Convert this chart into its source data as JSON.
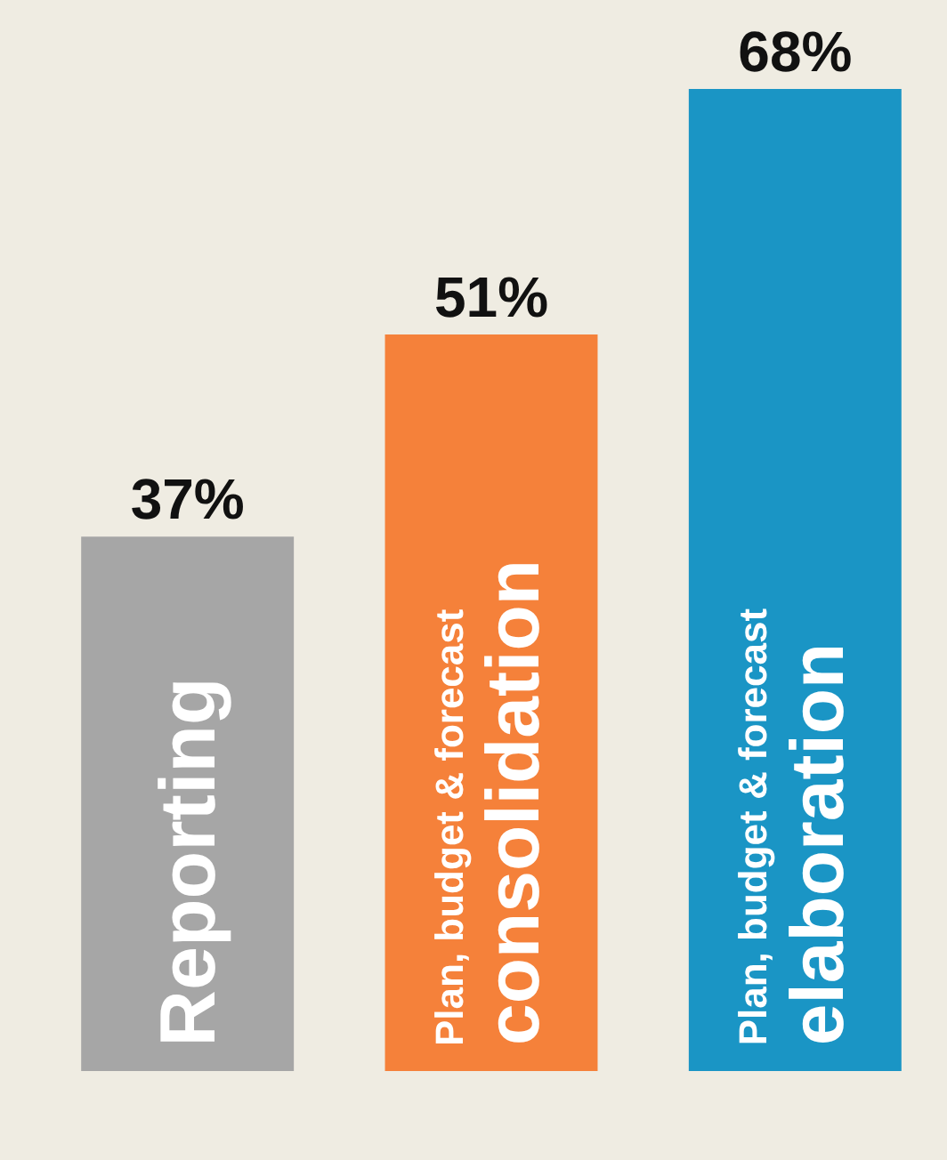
{
  "chart_data": {
    "type": "bar",
    "categories": [
      "Reporting",
      "Plan, budget & forecast consolidation",
      "Plan, budget & forecast elaboration"
    ],
    "values": [
      37,
      51,
      68
    ],
    "value_labels": [
      "37%",
      "51%",
      "68%"
    ],
    "colors": [
      "#a6a6a6",
      "#f5813a",
      "#1a95c5"
    ],
    "legend": false
  }
}
